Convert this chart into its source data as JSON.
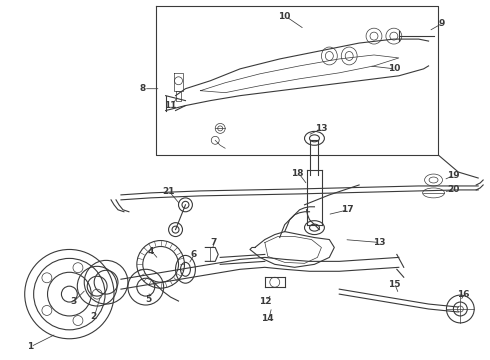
{
  "bg_color": "#ffffff",
  "line_color": "#3a3a3a",
  "figsize": [
    4.9,
    3.6
  ],
  "dpi": 100,
  "font_size": 6.5,
  "font_weight": "bold"
}
